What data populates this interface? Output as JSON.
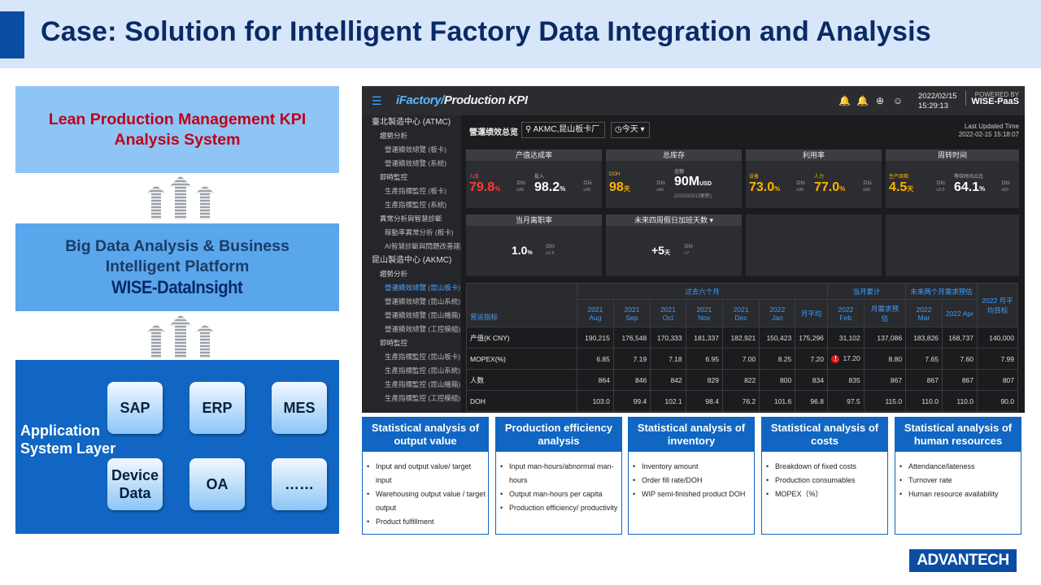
{
  "page": {
    "title": "Case: Solution for Intelligent Factory Data Integration and Analysis"
  },
  "left_column": {
    "lean_box": "Lean Production Management KPI Analysis System",
    "bigdata_box": {
      "title": "Big Data Analysis & Business Intelligent Platform",
      "product": "WISE-DataInsight"
    },
    "app_layer": {
      "label": "Application System Layer",
      "chips": [
        "SAP",
        "ERP",
        "MES",
        "Device Data",
        "OA",
        "……"
      ]
    }
  },
  "dashboard": {
    "brand_a": "iFactory/",
    "brand_b": "Production KPI",
    "date": "2022/02/15",
    "time": "15:29:13",
    "powered_by": "POWERED BY",
    "paas": "WISE-PaaS",
    "sidebar": [
      "臺北製造中心 (ATMC)",
      "趨勢分析",
      "營運績效總覽 (板卡)",
      "營運績效總覽 (系統)",
      "即時監控",
      "生產指標監控 (板卡)",
      "生產指標監控 (系統)",
      "異常分析與智慧診斷",
      "稼動率異常分析 (板卡)",
      "AI智慧診斷與問題改善建議",
      "昆山製造中心 (AKMC)",
      "趨勢分析",
      "營運績效總覽 (昆山板卡)",
      "營運績效總覽 (昆山系統)",
      "營運績效總覽 (昆山機箱)",
      "營運績效總覽 (工控模組)",
      "即時監控",
      "生產指標監控 (昆山板卡)",
      "生產指標監控 (昆山系統)",
      "生產指標監控 (昆山機箱)",
      "生產指標監控 (工控模組)"
    ],
    "overview_title": "營運绩效总览",
    "filter": "AKMC,昆山板卡厂",
    "today": "今天",
    "last_updated_label": "Last Updated Time",
    "last_updated": "2022-02-15 15:18:07",
    "cards": [
      {
        "title": "产值达成率",
        "a_label": "入库",
        "a_val": "79.8",
        "a_unit": "%",
        "a_target": "目标 ≥95",
        "b_label": "投入",
        "b_val": "98.2",
        "b_unit": "%",
        "b_target": "目标 ≥95"
      },
      {
        "title": "总库存",
        "a_label": "DOH",
        "a_val": "98",
        "a_unit": "天",
        "a_target": "目标 ≤90",
        "b_label": "金额",
        "b_val": "90M",
        "b_unit": "USD",
        "b_note": "(2022/02/13更新)"
      },
      {
        "title": "利用率",
        "a_label": "设备",
        "a_val": "73.0",
        "a_unit": "%",
        "a_target": "目标 ≥95",
        "b_label": "人力",
        "b_val": "77.0",
        "b_unit": "%",
        "b_target": "目标 ≥90"
      },
      {
        "title": "周转时间",
        "a_label": "生产周期",
        "a_val": "4.5",
        "a_unit": "天",
        "a_target": "目标 ≤3.5",
        "b_label": "等待时间占比",
        "b_val": "64.1",
        "b_unit": "%",
        "b_target": "目标 ≤65"
      }
    ],
    "cards2": [
      {
        "title": "当月离职率",
        "val": "1.0",
        "unit": "%",
        "target": "目标 ≤3.5"
      },
      {
        "title": "未来四周假日加班天数",
        "val": "+5",
        "unit": "天",
        "target": "目标 <7"
      }
    ],
    "table": {
      "group_headers": [
        "过去六个月",
        "当月累计",
        "未来两个月需求预估",
        "2022 月平均目标"
      ],
      "row_label_header": "营运指标",
      "columns": [
        "2021 Aug",
        "2021 Sep",
        "2021 Oct",
        "2021 Nov",
        "2021 Dec",
        "2022 Jan",
        "月平均",
        "2022 Feb",
        "月需求预估",
        "2022 Mar",
        "2022 Apr"
      ],
      "rows": [
        {
          "label": "产值(K CNY)",
          "values": [
            "190,215",
            "176,548",
            "170,333",
            "181,337",
            "182,921",
            "150,423",
            "175,296",
            "31,102",
            "137,086",
            "183,826",
            "168,737",
            "140,000"
          ]
        },
        {
          "label": "MOPEX(%)",
          "values": [
            "6.85",
            "7.19",
            "7.18",
            "6.95",
            "7.00",
            "8.25",
            "7.20",
            "17.20",
            "8.80",
            "7.65",
            "7.60",
            "7.99"
          ]
        },
        {
          "label": "人数",
          "values": [
            "864",
            "846",
            "842",
            "829",
            "822",
            "800",
            "834",
            "835",
            "867",
            "867",
            "867",
            "807"
          ]
        },
        {
          "label": "DOH",
          "values": [
            "103.0",
            "99.4",
            "102.1",
            "98.4",
            "76.2",
            "101.6",
            "96.8",
            "97.5",
            "115.0",
            "110.0",
            "110.0",
            "90.0"
          ]
        }
      ]
    }
  },
  "categories": [
    {
      "title": "Statistical analysis of output value",
      "items": [
        "Input and output value/ target input",
        "Warehousing output value / target output",
        "Product fulfillment"
      ]
    },
    {
      "title": "Production efficiency analysis",
      "items": [
        "Input man-hours/abnormal man-hours",
        "Output man-hours per capita",
        "Production efficiency/ productivity"
      ]
    },
    {
      "title": "Statistical analysis of inventory",
      "items": [
        "Inventory amount",
        "Order fill rate/DOH",
        "WIP semi-finished product DOH"
      ]
    },
    {
      "title": "Statistical analysis of costs",
      "items": [
        "Breakdown of fixed costs",
        "Production consumables",
        "MOPEX（%）"
      ]
    },
    {
      "title": "Statistical analysis of human resources",
      "items": [
        "Attendance/lateness",
        "Turnover rate",
        "Human resource availability"
      ]
    }
  ],
  "brand_logo": "ADVANTECH",
  "colors": {
    "header_bg": "#d7e6f8",
    "accent": "#0a4da3",
    "title": "#0a2a66",
    "lean_text": "#c0001a",
    "red": "#ff3b3b",
    "yellow": "#ffb400"
  }
}
